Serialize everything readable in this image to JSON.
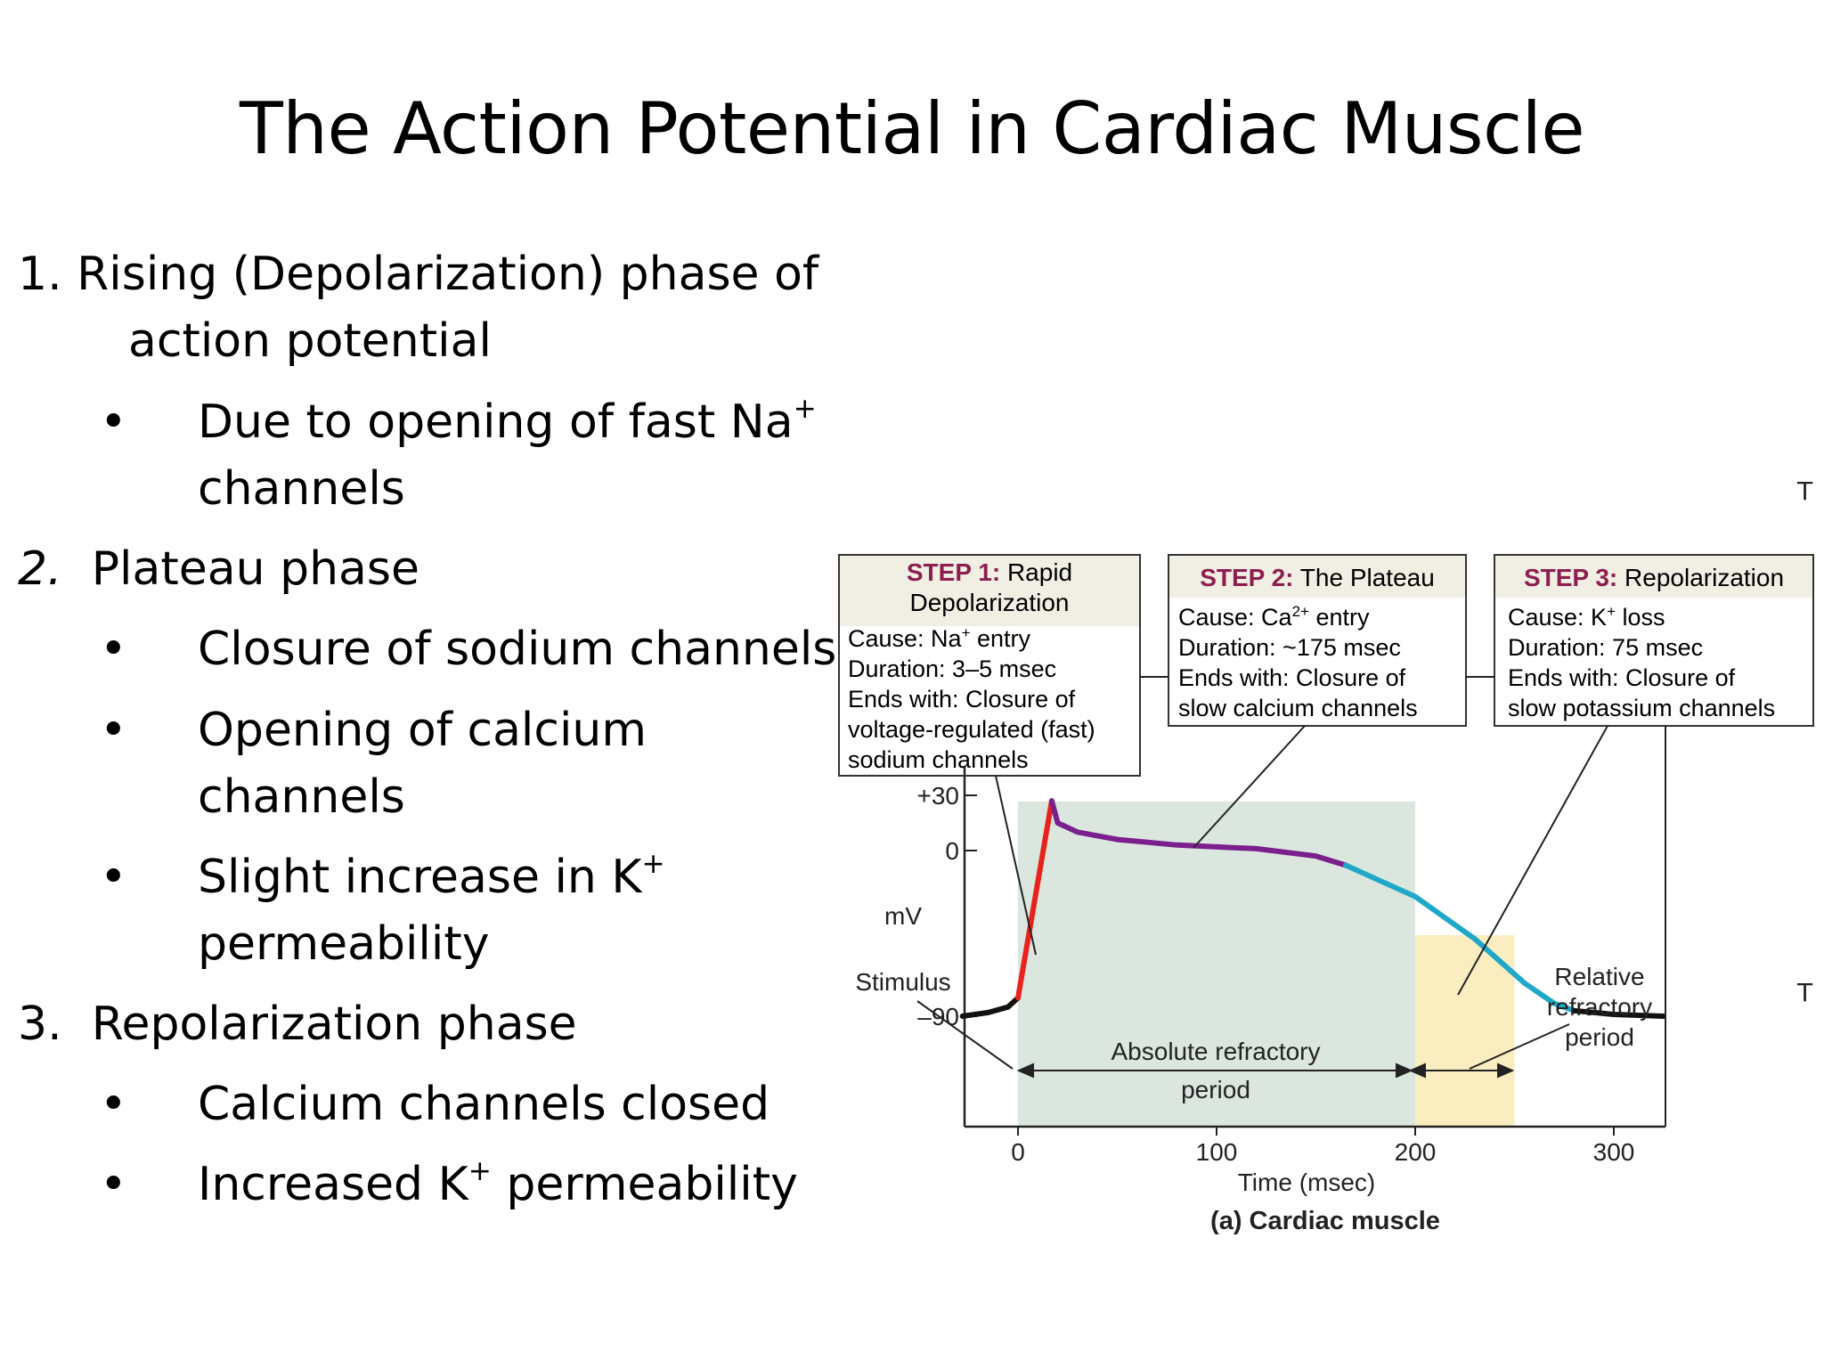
{
  "slide": {
    "title": "The Action Potential in Cardiac Muscle"
  },
  "list": {
    "item1": {
      "num": "1.",
      "label": "Rising (Depolarization) phase of",
      "cont": "action potential"
    },
    "item1_bullet1": {
      "pre": "Due to opening of fast Na",
      "sup": "+",
      "cont": "channels"
    },
    "item2": {
      "num": "2.",
      "label": "Plateau phase"
    },
    "item2_bullet1": {
      "text": "Closure of sodium channels"
    },
    "item2_bullet2": {
      "text": "Opening of calcium",
      "cont": "channels"
    },
    "item2_bullet3": {
      "pre": "Slight increase in K",
      "sup": "+",
      "cont": "permeability"
    },
    "item3": {
      "num": "3.",
      "label": "Repolarization phase"
    },
    "item3_bullet1": {
      "text": "Calcium channels closed"
    },
    "item3_bullet2": {
      "pre": "Increased K",
      "sup": "+",
      "post": " permeability"
    },
    "bullet_char": "•"
  },
  "stray_marks": [
    "T",
    "T"
  ],
  "figure": {
    "step1": {
      "heading": "STEP 1:",
      "title_a": "Rapid",
      "title_b": "Depolarization",
      "cause_pre": "Cause: Na",
      "cause_sup": "+",
      "cause_post": " entry",
      "duration": "Duration: 3–5 msec",
      "ends_a": "Ends with: Closure of",
      "ends_b": "voltage-regulated (fast)",
      "ends_c": "sodium channels"
    },
    "step2": {
      "heading": "STEP 2:",
      "title": "The Plateau",
      "cause_pre": "Cause: Ca",
      "cause_sup": "2+",
      "cause_post": " entry",
      "duration": "Duration: ~175 msec",
      "ends_a": "Ends with: Closure of",
      "ends_b": "slow calcium channels"
    },
    "step3": {
      "heading": "STEP 3:",
      "title": "Repolarization",
      "cause_pre": "Cause: K",
      "cause_sup": "+",
      "cause_post": " loss",
      "duration": "Duration: 75 msec",
      "ends_a": "Ends with: Closure of",
      "ends_b": "slow potassium channels"
    },
    "ylabel": "mV",
    "stimulus": "Stimulus",
    "abs_a": "Absolute refractory",
    "abs_b": "period",
    "rel_a": "Relative",
    "rel_b": "refractory",
    "rel_c": "period",
    "xlabel": "Time (msec)",
    "caption": "(a) Cardiac muscle",
    "colors": {
      "heading": "#8c1f4f",
      "depol": "#e8221c",
      "plateau": "#7a1f8c",
      "repol": "#1fa8c8",
      "rest": "#111111",
      "abs_fill": "#dbe6df",
      "rel_fill": "#faeec0",
      "box_head": "#f1efe4"
    }
  },
  "chart_data": {
    "type": "line",
    "title": "",
    "xlabel": "Time (msec)",
    "ylabel": "mV",
    "x_ticks": [
      0,
      100,
      200,
      300
    ],
    "y_ticks": [
      {
        "value": 30,
        "label": "+30"
      },
      {
        "value": 0,
        "label": "0"
      },
      {
        "value": -90,
        "label": "–90"
      }
    ],
    "xlim": [
      -30,
      325
    ],
    "ylim": [
      -106,
      40
    ],
    "series": [
      {
        "color": "#111111",
        "x": [
          -28,
          -15,
          -5,
          0
        ],
        "y": [
          -90,
          -88,
          -85,
          -80
        ]
      },
      {
        "color": "#e8221c",
        "x": [
          0,
          17
        ],
        "y": [
          -80,
          27
        ]
      },
      {
        "color": "#7a1f8c",
        "x": [
          17,
          20,
          30,
          50,
          80,
          120,
          150,
          165
        ],
        "y": [
          27,
          15,
          10,
          6,
          3,
          1,
          -3,
          -8
        ]
      },
      {
        "color": "#1fa8c8",
        "x": [
          165,
          200,
          230,
          255,
          270,
          280
        ],
        "y": [
          -8,
          -25,
          -48,
          -72,
          -83,
          -87
        ]
      },
      {
        "color": "#111111",
        "x": [
          280,
          300,
          325
        ],
        "y": [
          -87,
          -89,
          -90
        ]
      }
    ],
    "regions": [
      {
        "label": "Absolute refractory period",
        "from": 0,
        "to": 200,
        "color": "#dbe6df"
      },
      {
        "label": "Relative refractory period",
        "from": 200,
        "to": 250,
        "color": "#faeec0"
      }
    ]
  }
}
